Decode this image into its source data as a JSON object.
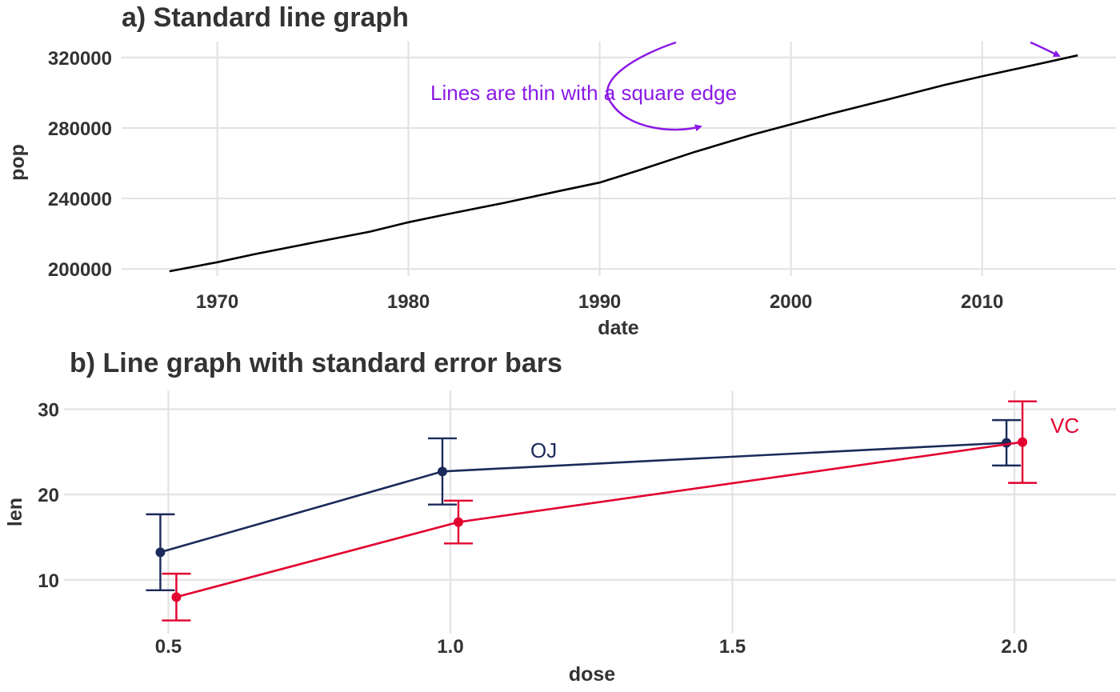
{
  "chart_data": [
    {
      "panel": "a",
      "type": "line",
      "title": "a) Standard line graph",
      "xlabel": "date",
      "ylabel": "pop",
      "xlim": [
        1965,
        2017
      ],
      "ylim": [
        196000,
        329000
      ],
      "xticks": [
        1970,
        1980,
        1990,
        2000,
        2010
      ],
      "yticks": [
        200000,
        240000,
        280000,
        320000
      ],
      "grid": true,
      "series": [
        {
          "color": "#000000",
          "x": [
            1967.5,
            1970,
            1972,
            1975,
            1978,
            1980,
            1982,
            1985,
            1988,
            1990,
            1992,
            1995,
            1998,
            2000,
            2002,
            2005,
            2008,
            2010,
            2012,
            2015
          ],
          "y": [
            198700,
            203800,
            208500,
            214900,
            221200,
            226500,
            231000,
            237500,
            244500,
            249000,
            255800,
            266500,
            276200,
            282000,
            287800,
            296000,
            304300,
            309300,
            314000,
            321200
          ]
        }
      ],
      "annotations": [
        {
          "text": "Lines are thin with a square edge",
          "color": "#8a19e6"
        }
      ]
    },
    {
      "panel": "b",
      "type": "line",
      "title": "b) Line graph with standard error bars",
      "xlabel": "dose",
      "ylabel": "len",
      "xlim": [
        0.315,
        2.18
      ],
      "ylim": [
        3.7,
        32.2
      ],
      "xticks": [
        "0.5",
        "1.0",
        "1.5",
        "2.0"
      ],
      "xtick_values": [
        0.5,
        1.0,
        1.5,
        2.0
      ],
      "yticks": [
        10,
        20,
        30
      ],
      "grid": true,
      "series": [
        {
          "name": "OJ",
          "color": "#1b2a5a",
          "x": [
            0.5,
            1.0,
            2.0
          ],
          "y": [
            13.23,
            22.7,
            26.06
          ],
          "lower": [
            8.78,
            18.82,
            23.4
          ],
          "upper": [
            17.68,
            26.58,
            28.72
          ]
        },
        {
          "name": "VC",
          "color": "#e2002f",
          "x": [
            0.5,
            1.0,
            2.0
          ],
          "y": [
            7.98,
            16.77,
            26.14
          ],
          "lower": [
            5.24,
            14.26,
            21.36
          ],
          "upper": [
            10.72,
            19.28,
            30.92
          ]
        }
      ]
    }
  ]
}
